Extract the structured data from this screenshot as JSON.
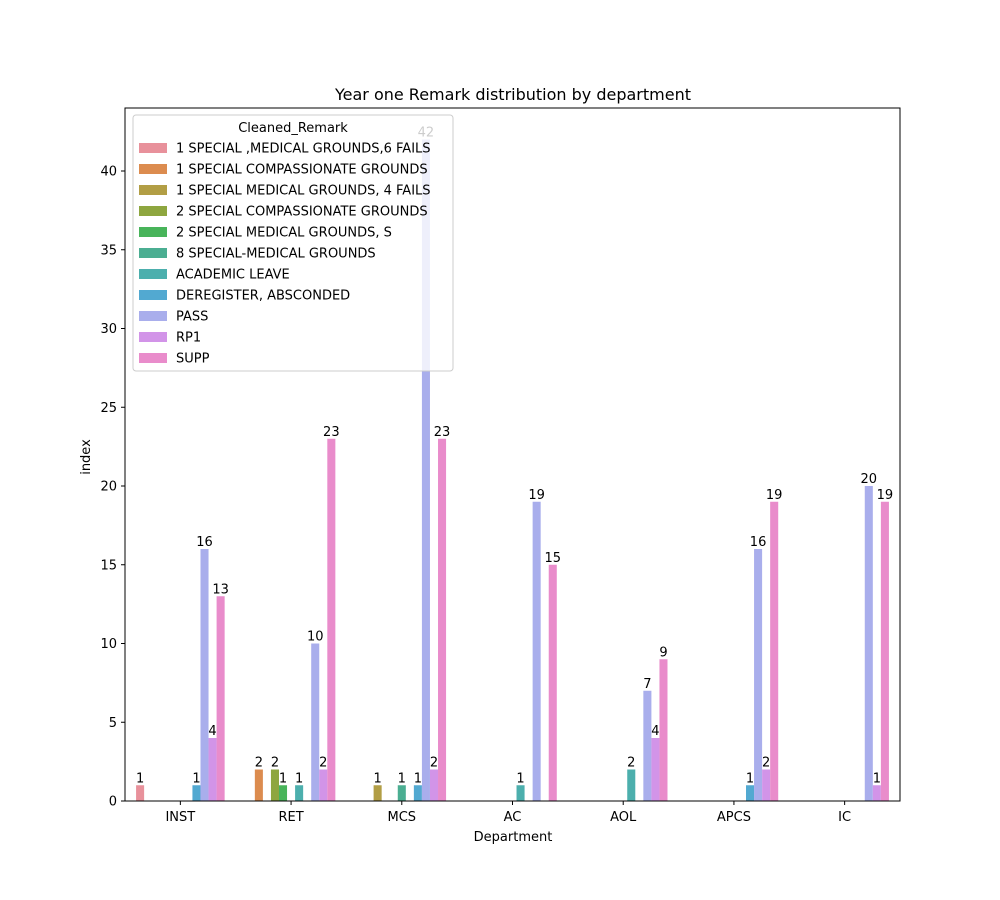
{
  "chart_data": {
    "type": "bar",
    "title": "Year one Remark distribution by department",
    "xlabel": "Department",
    "ylabel": "index",
    "ylim": [
      0,
      44
    ],
    "yticks": [
      0,
      5,
      10,
      15,
      20,
      25,
      30,
      35,
      40
    ],
    "categories": [
      "INST",
      "RET",
      "MCS",
      "AC",
      "AOL",
      "APCS",
      "IC"
    ],
    "legend": {
      "title": "Cleaned_Remark",
      "placement": "top-left"
    },
    "series": [
      {
        "name": "1 SPECIAL ,MEDICAL GROUNDS,6 FAILS",
        "color": "#e8919b",
        "values": [
          1,
          null,
          null,
          null,
          null,
          null,
          null
        ]
      },
      {
        "name": "1 SPECIAL COMPASSIONATE GROUNDS",
        "color": "#dc8c4f",
        "values": [
          null,
          2,
          null,
          null,
          null,
          null,
          null
        ]
      },
      {
        "name": "1 SPECIAL MEDICAL GROUNDS, 4 FAILS",
        "color": "#b29e45",
        "values": [
          null,
          null,
          1,
          null,
          null,
          null,
          null
        ]
      },
      {
        "name": "2 SPECIAL COMPASSIONATE GROUNDS",
        "color": "#8ea63f",
        "values": [
          null,
          2,
          null,
          null,
          null,
          null,
          null
        ]
      },
      {
        "name": "2 SPECIAL MEDICAL GROUNDS, S",
        "color": "#48b45a",
        "values": [
          null,
          1,
          null,
          null,
          null,
          null,
          null
        ]
      },
      {
        "name": "8 SPECIAL-MEDICAL GROUNDS",
        "color": "#4bae92",
        "values": [
          null,
          null,
          1,
          null,
          null,
          null,
          null
        ]
      },
      {
        "name": "ACADEMIC LEAVE",
        "color": "#4cafad",
        "values": [
          null,
          1,
          null,
          1,
          2,
          null,
          null
        ]
      },
      {
        "name": "DEREGISTER, ABSCONDED",
        "color": "#52a9d1",
        "values": [
          1,
          null,
          1,
          null,
          null,
          1,
          null
        ]
      },
      {
        "name": "PASS",
        "color": "#a9aeec",
        "values": [
          16,
          10,
          42,
          19,
          7,
          16,
          20
        ]
      },
      {
        "name": "RP1",
        "color": "#d294e8",
        "values": [
          4,
          2,
          2,
          null,
          4,
          2,
          1
        ]
      },
      {
        "name": "SUPP",
        "color": "#e98ccb",
        "values": [
          13,
          23,
          23,
          15,
          9,
          19,
          19
        ]
      }
    ]
  }
}
